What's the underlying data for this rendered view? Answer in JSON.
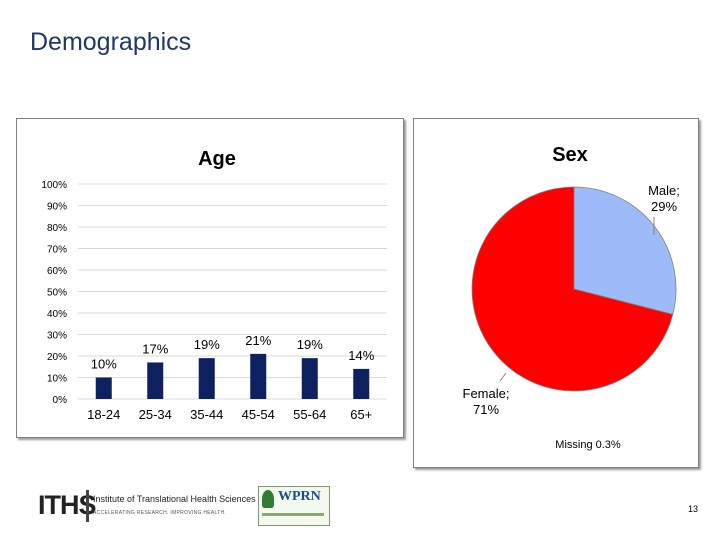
{
  "slide": {
    "title": "Demographics",
    "page_number": "13"
  },
  "logos": {
    "iths_abbrev": "ITHS",
    "iths_name": "Institute of Translational Health Sciences",
    "iths_tagline": "ACCELERATING RESEARCH. IMPROVING HEALTH.",
    "wprn": "WPRN"
  },
  "chart_data": [
    {
      "type": "bar",
      "title": "Age",
      "categories": [
        "18-24",
        "25-34",
        "35-44",
        "45-54",
        "55-64",
        "65+"
      ],
      "values": [
        10,
        17,
        19,
        21,
        19,
        14
      ],
      "value_labels": [
        "10%",
        "17%",
        "19%",
        "21%",
        "19%",
        "14%"
      ],
      "y_ticks": [
        "0%",
        "10%",
        "20%",
        "30%",
        "40%",
        "50%",
        "60%",
        "70%",
        "80%",
        "90%",
        "100%"
      ],
      "ylim": [
        0,
        100
      ],
      "bar_color": "#0d2060",
      "grid": true,
      "legend": false
    },
    {
      "type": "pie",
      "title": "Sex",
      "slices": [
        {
          "label": "Male",
          "value": 29,
          "text": "Male; 29%",
          "color": "#9dbbf8"
        },
        {
          "label": "Female",
          "value": 71,
          "text": "Female; 71%",
          "color": "#ff0000"
        }
      ],
      "note": "Missing 0.3%",
      "legend": false
    }
  ]
}
